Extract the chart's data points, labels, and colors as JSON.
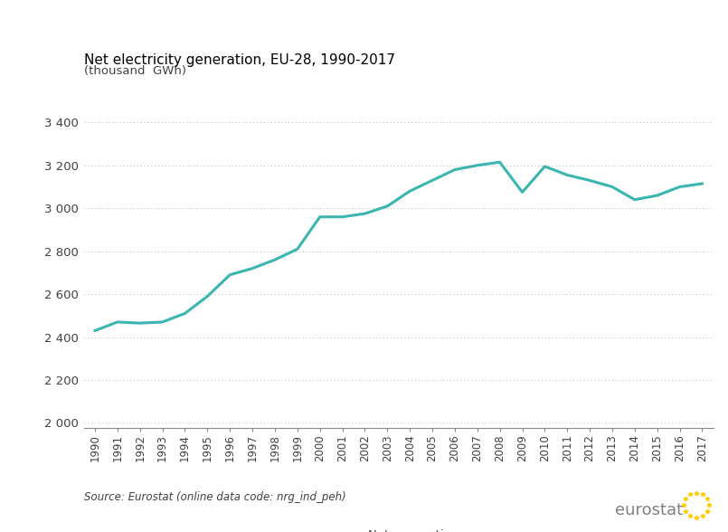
{
  "title": "Net electricity generation, EU-28, 1990-2017",
  "subtitle": "(thousand  GWh)",
  "line_color": "#3ab5b0",
  "legend_label": "Net generation",
  "source_text": "Source: Eurostat (online data code: nrg_ind_peh)",
  "years": [
    1990,
    1991,
    1992,
    1993,
    1994,
    1995,
    1996,
    1997,
    1998,
    1999,
    2000,
    2001,
    2002,
    2003,
    2004,
    2005,
    2006,
    2007,
    2008,
    2009,
    2010,
    2011,
    2012,
    2013,
    2014,
    2015,
    2016,
    2017
  ],
  "values": [
    2430,
    2470,
    2465,
    2470,
    2510,
    2590,
    2690,
    2720,
    2760,
    2810,
    2960,
    2960,
    2975,
    3010,
    3080,
    3130,
    3180,
    3200,
    3215,
    3075,
    3195,
    3155,
    3130,
    3100,
    3040,
    3060,
    3100,
    3115
  ],
  "ylim": [
    1975,
    3450
  ],
  "yticks": [
    2000,
    2200,
    2400,
    2600,
    2800,
    3000,
    3200,
    3400
  ],
  "ytick_labels": [
    "2 000",
    "2 200",
    "2 400",
    "2 600",
    "2 800",
    "3 000",
    "3 200",
    "3 400"
  ],
  "background_color": "#ffffff",
  "grid_color": "#b0b0b0",
  "line_width": 2.2
}
